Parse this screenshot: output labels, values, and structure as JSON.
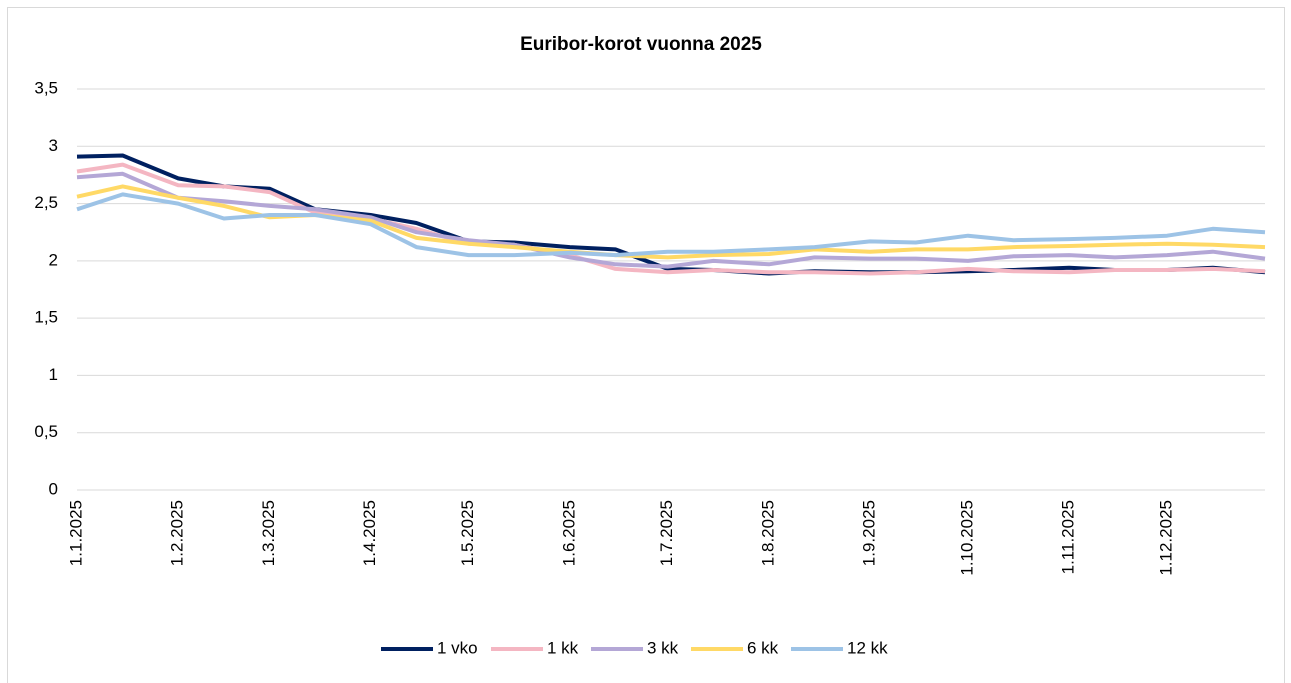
{
  "chart_data": {
    "type": "line",
    "title": "Euribor-korot vuonna 2025",
    "x": [
      "1.1.2025",
      "15.1.2025",
      "1.2.2025",
      "15.2.2025",
      "1.3.2025",
      "15.3.2025",
      "1.4.2025",
      "15.4.2025",
      "1.5.2025",
      "15.5.2025",
      "1.6.2025",
      "15.6.2025",
      "1.7.2025",
      "15.7.2025",
      "1.8.2025",
      "15.8.2025",
      "1.9.2025",
      "15.9.2025",
      "1.10.2025",
      "15.10.2025",
      "1.11.2025",
      "15.11.2025",
      "1.12.2025",
      "15.12.2025",
      "31.12.2025"
    ],
    "series": [
      {
        "name": "1 vko",
        "color": "#002060",
        "values": [
          2.91,
          2.92,
          2.72,
          2.65,
          2.63,
          2.45,
          2.4,
          2.33,
          2.17,
          2.16,
          2.12,
          2.1,
          1.93,
          1.92,
          1.89,
          1.91,
          1.9,
          1.9,
          1.91,
          1.92,
          1.94,
          1.92,
          1.92,
          1.94,
          1.9
        ]
      },
      {
        "name": "1 kk",
        "color": "#f4b6c2",
        "values": [
          2.78,
          2.84,
          2.66,
          2.65,
          2.6,
          2.42,
          2.37,
          2.28,
          2.15,
          2.14,
          2.05,
          1.93,
          1.9,
          1.92,
          1.9,
          1.9,
          1.89,
          1.9,
          1.93,
          1.91,
          1.9,
          1.92,
          1.92,
          1.93,
          1.91
        ]
      },
      {
        "name": "3 kk",
        "color": "#b4a7d6",
        "values": [
          2.73,
          2.76,
          2.55,
          2.52,
          2.48,
          2.45,
          2.38,
          2.25,
          2.18,
          2.14,
          2.03,
          1.97,
          1.95,
          2.0,
          1.97,
          2.03,
          2.02,
          2.02,
          2.0,
          2.04,
          2.05,
          2.03,
          2.05,
          2.08,
          2.02
        ]
      },
      {
        "name": "6 kk",
        "color": "#ffd966",
        "values": [
          2.56,
          2.65,
          2.55,
          2.48,
          2.38,
          2.4,
          2.35,
          2.2,
          2.15,
          2.12,
          2.08,
          2.05,
          2.03,
          2.05,
          2.06,
          2.1,
          2.08,
          2.1,
          2.1,
          2.12,
          2.13,
          2.14,
          2.15,
          2.14,
          2.12
        ]
      },
      {
        "name": "12 kk",
        "color": "#9dc3e6",
        "values": [
          2.45,
          2.58,
          2.5,
          2.37,
          2.4,
          2.4,
          2.32,
          2.12,
          2.05,
          2.05,
          2.07,
          2.05,
          2.08,
          2.08,
          2.1,
          2.12,
          2.17,
          2.16,
          2.22,
          2.18,
          2.19,
          2.2,
          2.22,
          2.28,
          2.25
        ]
      }
    ],
    "xlim": [
      "1.1.2025",
      "31.12.2025"
    ],
    "xticks": [
      "1.1.2025",
      "1.2.2025",
      "1.3.2025",
      "1.4.2025",
      "1.5.2025",
      "1.6.2025",
      "1.7.2025",
      "1.8.2025",
      "1.9.2025",
      "1.10.2025",
      "1.11.2025",
      "1.12.2025"
    ],
    "ylim": [
      0,
      3.5
    ],
    "yticks": [
      0,
      {
        "value": 0.5,
        "label": "0,5"
      },
      1,
      {
        "value": 1.5,
        "label": "1,5"
      },
      2,
      {
        "value": 2.5,
        "label": "2,5"
      },
      3,
      {
        "value": 3.5,
        "label": "3,5"
      }
    ],
    "grid": true,
    "legend": "bottom"
  }
}
